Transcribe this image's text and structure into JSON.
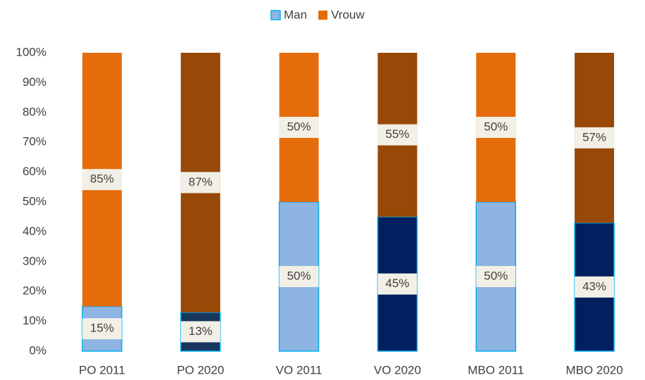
{
  "chart_data": {
    "type": "stacked_bar",
    "categories": [
      "PO 2011",
      "PO 2020",
      "VO 2011",
      "VO 2020",
      "MBO 2011",
      "MBO 2020"
    ],
    "series": [
      {
        "name": "Man",
        "color": "#8db4e2",
        "colors": [
          "#8db4e2",
          "#17365d",
          "#8db4e2",
          "#002060",
          "#8db4e2",
          "#002060"
        ],
        "border": "#00b0f0",
        "values": [
          15,
          13,
          50,
          45,
          50,
          43
        ],
        "value_labels": [
          "15%",
          "13%",
          "50%",
          "45%",
          "50%",
          "43%"
        ]
      },
      {
        "name": "Vrouw",
        "color": "#e46c0a",
        "colors": [
          "#e46c0a",
          "#984807",
          "#e46c0a",
          "#984807",
          "#e46c0a",
          "#984807"
        ],
        "values": [
          85,
          87,
          50,
          55,
          50,
          57
        ],
        "value_labels": [
          "85%",
          "87%",
          "50%",
          "55%",
          "50%",
          "57%"
        ]
      }
    ],
    "ylim": [
      0,
      100
    ],
    "yticks": [
      {
        "value": 0,
        "label": "0%"
      },
      {
        "value": 10,
        "label": "10%"
      },
      {
        "value": 20,
        "label": "20%"
      },
      {
        "value": 30,
        "label": "30%"
      },
      {
        "value": 40,
        "label": "40%"
      },
      {
        "value": 50,
        "label": "50%"
      },
      {
        "value": 60,
        "label": "60%"
      },
      {
        "value": 70,
        "label": "70%"
      },
      {
        "value": 80,
        "label": "80%"
      },
      {
        "value": 90,
        "label": "90%"
      },
      {
        "value": 100,
        "label": "100%"
      }
    ],
    "grid": false,
    "legend": "top"
  }
}
